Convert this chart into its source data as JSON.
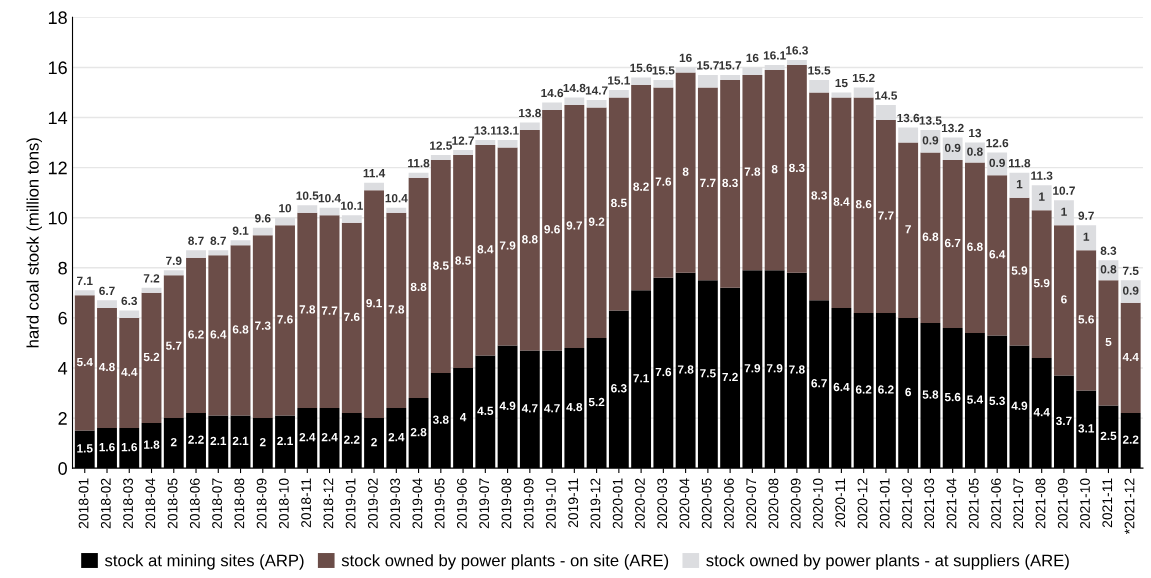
{
  "chart_data": {
    "type": "bar",
    "stacked": true,
    "ylabel": "hard coal stock (million tons)",
    "categories": [
      "2018-01",
      "2018-02",
      "2018-03",
      "2018-04",
      "2018-05",
      "2018-06",
      "2018-07",
      "2018-08",
      "2018-09",
      "2018-10",
      "2018-11",
      "2018-12",
      "2019-01",
      "2019-02",
      "2019-03",
      "2019-04",
      "2019-05",
      "2019-06",
      "2019-07",
      "2019-08",
      "2019-09",
      "2019-10",
      "2019-11",
      "2019-12",
      "2020-01",
      "2020-02",
      "2020-03",
      "2020-04",
      "2020-05",
      "2020-06",
      "2020-07",
      "2020-08",
      "2020-09",
      "2020-10",
      "2020-11",
      "2020-12",
      "2021-01",
      "2021-02",
      "2021-03",
      "2021-04",
      "2021-05",
      "2021-06",
      "2021-07",
      "2021-08",
      "2021-09",
      "2021-10",
      "2021-11",
      "*2021-12"
    ],
    "series": [
      {
        "name": "stock at mining sites (ARP)",
        "color": "#000000",
        "values": [
          1.5,
          1.6,
          1.6,
          1.8,
          2,
          2.2,
          2.1,
          2.1,
          2,
          2.1,
          2.4,
          2.4,
          2.2,
          2,
          2.4,
          2.8,
          3.8,
          4,
          4.5,
          4.9,
          4.7,
          4.7,
          4.8,
          5.2,
          6.3,
          7.1,
          7.6,
          7.8,
          7.5,
          7.2,
          7.9,
          7.9,
          7.8,
          6.7,
          6.4,
          6.2,
          6.2,
          6,
          5.8,
          5.6,
          5.4,
          5.3,
          4.9,
          4.4,
          3.7,
          3.1,
          2.5,
          2.2
        ],
        "value_labels": [
          "1.5",
          "1.6",
          "1.6",
          "1.8",
          "2",
          "2.2",
          "2.1",
          "2.1",
          "2",
          "2.1",
          "2.4",
          "2.4",
          "2.2",
          "2",
          "2.4",
          "2.8",
          "3.8",
          "4",
          "4.5",
          "4.9",
          "4.7",
          "4.7",
          "4.8",
          "5.2",
          "6.3",
          "7.1",
          "7.6",
          "7.8",
          "7.5",
          "7.2",
          "7.9",
          "7.9",
          "7.8",
          "6.7",
          "6.4",
          "6.2",
          "6.2",
          "6",
          "5.8",
          "5.6",
          "5.4",
          "5.3",
          "4.9",
          "4.4",
          "3.7",
          "3.1",
          "2.5",
          "2.2"
        ]
      },
      {
        "name": "stock owned by power plants - on site (ARE)",
        "color": "#6b4d48",
        "values": [
          5.4,
          4.8,
          4.4,
          5.2,
          5.7,
          6.2,
          6.4,
          6.8,
          7.3,
          7.6,
          7.8,
          7.7,
          7.6,
          9.1,
          7.8,
          8.8,
          8.5,
          8.5,
          8.4,
          7.9,
          8.8,
          9.6,
          9.7,
          9.2,
          8.5,
          8.2,
          7.6,
          8,
          7.7,
          8.3,
          7.8,
          8,
          8.3,
          8.3,
          8.4,
          8.6,
          7.7,
          7,
          6.8,
          6.7,
          6.8,
          6.4,
          5.9,
          5.9,
          6,
          5.6,
          5,
          4.4
        ],
        "value_labels": [
          "5.4",
          "4.8",
          "4.4",
          "5.2",
          "5.7",
          "6.2",
          "6.4",
          "6.8",
          "7.3",
          "7.6",
          "7.8",
          "7.7",
          "7.6",
          "9.1",
          "7.8",
          "8.8",
          "8.5",
          "8.5",
          "8.4",
          "7.9",
          "8.8",
          "9.6",
          "9.7",
          "9.2",
          "8.5",
          "8.2",
          "7.6",
          "8",
          "7.7",
          "8.3",
          "7.8",
          "8",
          "8.3",
          "8.3",
          "8.4",
          "8.6",
          "7.7",
          "7",
          "6.8",
          "6.7",
          "6.8",
          "6.4",
          "5.9",
          "5.9",
          "6",
          "5.6",
          "5",
          "4.4"
        ]
      },
      {
        "name": "stock owned by power plants - at suppliers (ARE)",
        "color": "#dcdde0",
        "values": [
          0.2,
          0.3,
          0.3,
          0.2,
          0.2,
          0.3,
          0.2,
          0.2,
          0.3,
          0.3,
          0.3,
          0.3,
          0.3,
          0.3,
          0.2,
          0.2,
          0.2,
          0.2,
          0.2,
          0.3,
          0.3,
          0.3,
          0.3,
          0.3,
          0.3,
          0.3,
          0.3,
          0.2,
          0.5,
          0.2,
          0.3,
          0.2,
          0.2,
          0.5,
          0.2,
          0.4,
          0.6,
          0.6,
          0.9,
          0.9,
          0.8,
          0.9,
          1,
          1,
          1,
          1,
          0.8,
          0.9
        ],
        "value_labels": [
          null,
          null,
          null,
          null,
          null,
          null,
          null,
          null,
          null,
          null,
          null,
          null,
          null,
          null,
          null,
          null,
          null,
          null,
          null,
          null,
          null,
          null,
          null,
          null,
          null,
          null,
          null,
          null,
          null,
          null,
          null,
          null,
          null,
          null,
          null,
          null,
          null,
          null,
          "0.9",
          "0.9",
          "0.8",
          "0.9",
          "1",
          "1",
          "1",
          "1",
          "0.8",
          "0.9"
        ]
      }
    ],
    "totals": [
      "7.1",
      "6.7",
      "6.3",
      "7.2",
      "7.9",
      "8.7",
      "8.7",
      "9.1",
      "9.6",
      "10",
      "10.5",
      "10.4",
      "10.1",
      "11.4",
      "10.4",
      "11.8",
      "12.5",
      "12.7",
      "13.1",
      "13.1",
      "13.8",
      "14.6",
      "14.8",
      "14.7",
      "15.1",
      "15.6",
      "15.5",
      "16",
      "15.7",
      "15.7",
      "16",
      "16.1",
      "16.3",
      "15.5",
      "15",
      "15.2",
      "14.5",
      "13.6",
      "13.5",
      "13.2",
      "13",
      "12.6",
      "11.8",
      "11.3",
      "10.7",
      "9.7",
      "8.3",
      "7.5"
    ],
    "ylim": [
      0,
      18
    ],
    "yticks": [
      0,
      2,
      4,
      6,
      8,
      10,
      12,
      14,
      16,
      18
    ],
    "grid": "y",
    "legend": "bottom"
  }
}
